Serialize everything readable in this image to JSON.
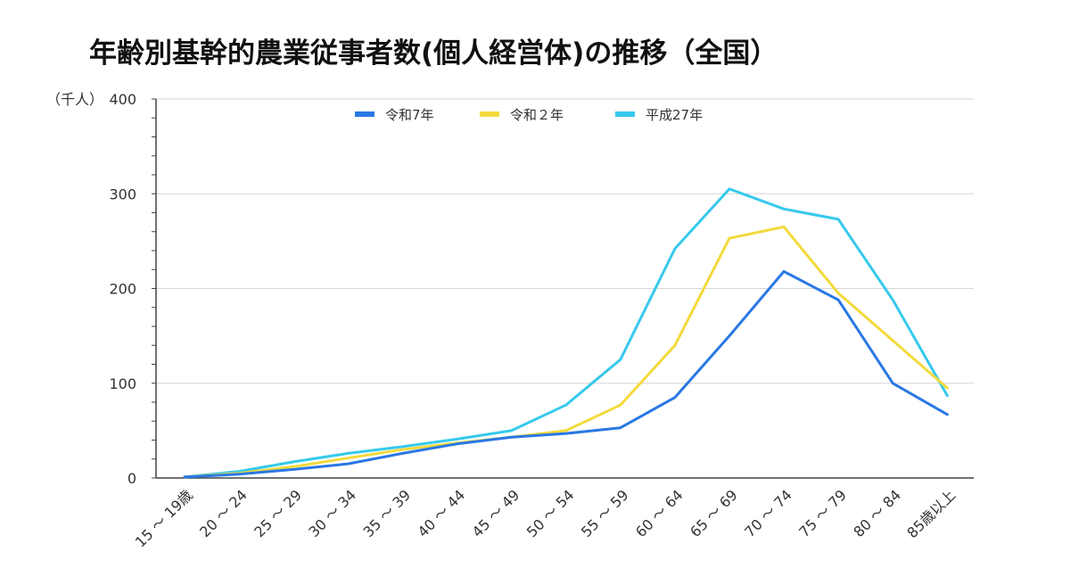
{
  "chart_data": {
    "type": "line",
    "title": "年齢別基幹的農業従事者数(個人経営体)の推移（全国）",
    "unit_label": "（千人）",
    "categories": [
      "15 ～ 19歳",
      "20 ～ 24",
      "25 ～ 29",
      "30 ～ 34",
      "35 ～ 39",
      "40 ～ 44",
      "45 ～ 49",
      "50 ～ 54",
      "55 ～ 59",
      "60 ～ 64",
      "65 ～ 69",
      "70 ～ 74",
      "75 ～ 79",
      "80 ～ 84",
      "85歳以上"
    ],
    "ylim": [
      0,
      400
    ],
    "yticks": [
      0,
      100,
      200,
      300,
      400
    ],
    "grid": true,
    "legend_position": "top",
    "series": [
      {
        "name": "令和7年",
        "color": "#2a78e4",
        "values": [
          1,
          4,
          9,
          15,
          26,
          36,
          43,
          47,
          53,
          85,
          150,
          218,
          188,
          100,
          67
        ]
      },
      {
        "name": "令和２年",
        "color": "#f2da3b",
        "values": [
          1,
          5,
          12,
          21,
          30,
          37,
          43,
          50,
          77,
          140,
          253,
          265,
          195,
          145,
          95
        ]
      },
      {
        "name": "平成27年",
        "color": "#36c9ec",
        "values": [
          1,
          7,
          17,
          26,
          33,
          41,
          50,
          77,
          125,
          242,
          305,
          284,
          273,
          188,
          87
        ]
      }
    ]
  }
}
